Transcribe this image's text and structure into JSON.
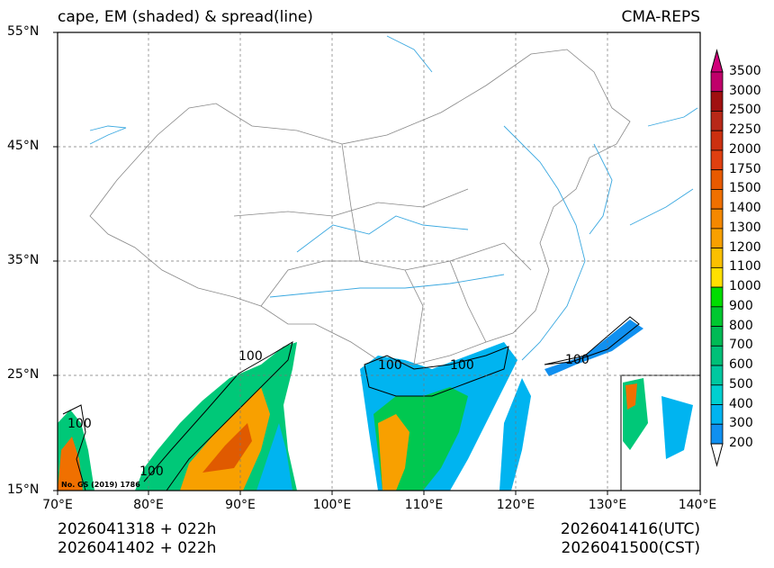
{
  "header": {
    "title": "cape, EM (shaded) & spread(line)",
    "model": "CMA-REPS"
  },
  "axes": {
    "lat_ticks": [
      "55°N",
      "45°N",
      "35°N",
      "25°N",
      "15°N"
    ],
    "lon_ticks": [
      "70°E",
      "80°E",
      "90°E",
      "100°E",
      "110°E",
      "120°E",
      "130°E",
      "140°E"
    ],
    "lat_range": [
      15,
      55
    ],
    "lon_range": [
      70,
      140
    ]
  },
  "footer": {
    "init_utc": "2026041318  +  022h",
    "init_cst": "2026041402  +  022h",
    "valid_utc": "2026041416(UTC)",
    "valid_cst": "2026041500(CST)"
  },
  "map_note": "No. GS (2019) 1786",
  "contour_labels": [
    "100",
    "100",
    "100",
    "100",
    "100",
    "100"
  ],
  "colorbar": {
    "levels": [
      "3500",
      "3000",
      "2500",
      "2250",
      "2000",
      "1750",
      "1500",
      "1400",
      "1300",
      "1200",
      "1100",
      "1000",
      "900",
      "800",
      "700",
      "600",
      "500",
      "400",
      "300",
      "200"
    ],
    "colors": [
      "#c0006a",
      "#a01010",
      "#b82818",
      "#cc3010",
      "#e04010",
      "#e85a00",
      "#f07000",
      "#f58800",
      "#f8a000",
      "#fbc000",
      "#ffe000",
      "#00dd00",
      "#00c830",
      "#00bb55",
      "#00c078",
      "#00c8a0",
      "#00d0d0",
      "#00b4f0",
      "#1090f0"
    ],
    "top_color": "#d0007a"
  }
}
